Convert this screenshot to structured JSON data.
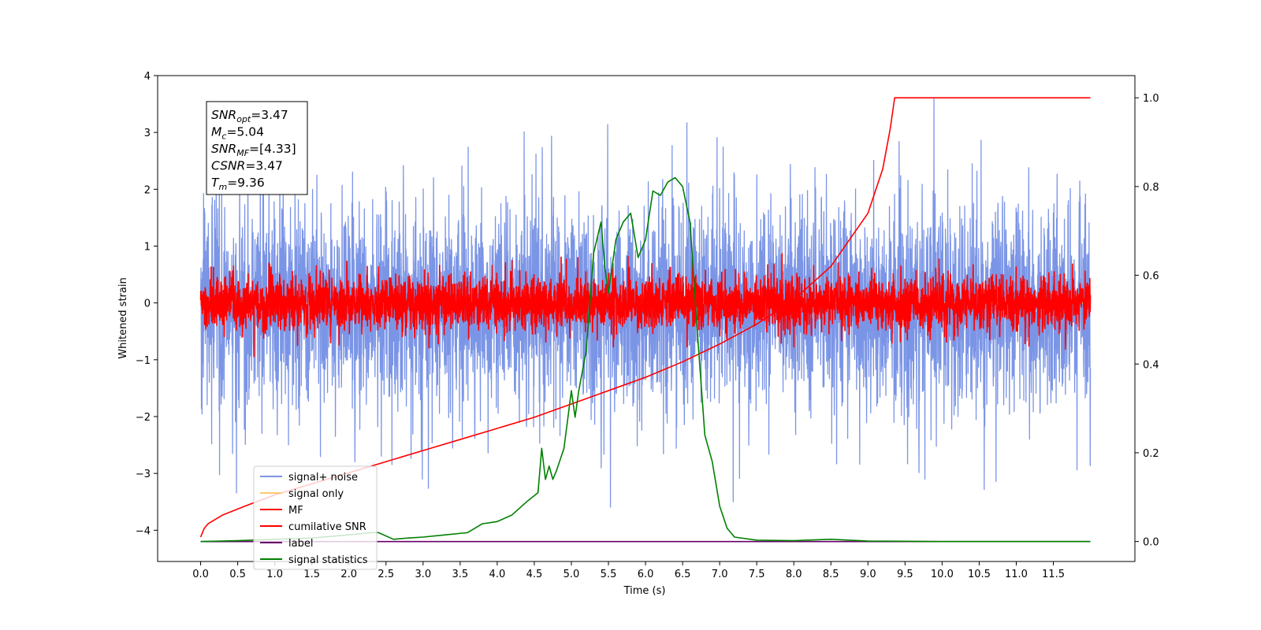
{
  "chart_data": {
    "type": "line",
    "title": "",
    "xlabel": "Time (s)",
    "ylabel": "Whitened strain",
    "xlim": [
      -0.58,
      12.6
    ],
    "ylim": [
      -4.55,
      4.0
    ],
    "y2lim": [
      -0.045,
      1.05
    ],
    "x_ticks": [
      0.0,
      0.5,
      1.0,
      1.5,
      2.0,
      2.5,
      3.0,
      3.5,
      4.0,
      4.5,
      5.0,
      5.5,
      6.0,
      6.5,
      7.0,
      7.5,
      8.0,
      8.5,
      9.0,
      9.5,
      10.0,
      10.5,
      11.0,
      11.5
    ],
    "x_tick_labels": [
      "0.0",
      "0.5",
      "1.0",
      "1.5",
      "2.0",
      "2.5",
      "3.0",
      "3.5",
      "4.0",
      "4.5",
      "5.0",
      "5.5",
      "6.0",
      "6.5",
      "7.0",
      "7.5",
      "8.0",
      "8.5",
      "9.0",
      "9.5",
      "10.0",
      "10.5",
      "11.0",
      "11.5"
    ],
    "y_ticks": [
      -4,
      -3,
      -2,
      -1,
      0,
      1,
      2,
      3,
      4
    ],
    "y_tick_labels": [
      "−4",
      "−3",
      "−2",
      "−1",
      "0",
      "1",
      "2",
      "3",
      "4"
    ],
    "y2_ticks": [
      0.0,
      0.2,
      0.4,
      0.6,
      0.8,
      1.0
    ],
    "y2_tick_labels": [
      "0.0",
      "0.2",
      "0.4",
      "0.6",
      "0.8",
      "1.0"
    ],
    "grid": false,
    "legend_position": "lower-left",
    "annotation": {
      "lines": [
        {
          "sym": "SNR",
          "sub": "opt",
          "val": "=3.47"
        },
        {
          "sym": "M",
          "sub": "c",
          "val": "=5.04"
        },
        {
          "sym": "SNR",
          "sub": "MF",
          "val": "=[4.33]"
        },
        {
          "sym": "CSNR",
          "sub": "",
          "val": "=3.47"
        },
        {
          "sym": "T",
          "sub": "m",
          "val": "=9.36"
        }
      ]
    },
    "series": [
      {
        "name": "signal+ noise",
        "color": "#7b95e6",
        "axis": "left",
        "style": "noise",
        "x_range": [
          0,
          12
        ],
        "mean": -0.05,
        "std": 0.85
      },
      {
        "name": "signal only",
        "color": "#ffc870",
        "axis": "left",
        "style": "flat",
        "x_range": [
          0,
          12
        ]
      },
      {
        "name": "MF",
        "color": "#ff0000",
        "axis": "left",
        "style": "noise",
        "x_range": [
          0,
          12
        ],
        "mean": 0.0,
        "std": 0.22
      },
      {
        "name": "cumilative SNR",
        "color": "#ff0000",
        "axis": "right",
        "x": [
          0.0,
          0.05,
          0.1,
          0.3,
          0.6,
          1.0,
          1.5,
          2.0,
          2.5,
          3.0,
          3.5,
          4.0,
          4.5,
          5.0,
          5.5,
          6.0,
          6.5,
          7.0,
          7.5,
          8.0,
          8.5,
          9.0,
          9.2,
          9.3,
          9.36,
          10.0,
          11.0,
          12.0
        ],
        "y": [
          0.01,
          0.03,
          0.04,
          0.06,
          0.08,
          0.105,
          0.13,
          0.155,
          0.18,
          0.205,
          0.23,
          0.255,
          0.28,
          0.31,
          0.34,
          0.37,
          0.405,
          0.445,
          0.49,
          0.545,
          0.62,
          0.74,
          0.84,
          0.93,
          1.0,
          1.0,
          1.0,
          1.0
        ]
      },
      {
        "name": "label",
        "color": "#6a006a",
        "axis": "right",
        "x": [
          0.0,
          12.0
        ],
        "y": [
          0.0,
          0.0
        ]
      },
      {
        "name": "signal statistics",
        "color": "#008000",
        "axis": "right",
        "x": [
          0.0,
          0.5,
          1.0,
          1.5,
          2.0,
          2.3,
          2.4,
          2.6,
          2.8,
          3.0,
          3.3,
          3.6,
          3.8,
          4.0,
          4.2,
          4.4,
          4.55,
          4.6,
          4.65,
          4.7,
          4.75,
          4.8,
          4.9,
          5.0,
          5.05,
          5.1,
          5.2,
          5.3,
          5.4,
          5.45,
          5.5,
          5.6,
          5.7,
          5.8,
          5.9,
          6.0,
          6.1,
          6.2,
          6.3,
          6.4,
          6.5,
          6.6,
          6.7,
          6.8,
          6.9,
          7.0,
          7.1,
          7.2,
          7.5,
          8.0,
          8.5,
          9.0,
          10.0,
          11.0,
          12.0
        ],
        "y": [
          0.0,
          0.002,
          0.005,
          0.008,
          0.015,
          0.02,
          0.02,
          0.005,
          0.008,
          0.01,
          0.015,
          0.02,
          0.04,
          0.045,
          0.06,
          0.09,
          0.11,
          0.21,
          0.14,
          0.17,
          0.14,
          0.16,
          0.21,
          0.34,
          0.28,
          0.34,
          0.43,
          0.65,
          0.72,
          0.62,
          0.56,
          0.68,
          0.72,
          0.74,
          0.64,
          0.68,
          0.79,
          0.78,
          0.81,
          0.82,
          0.8,
          0.72,
          0.47,
          0.24,
          0.18,
          0.08,
          0.03,
          0.01,
          0.003,
          0.002,
          0.005,
          0.001,
          0.0,
          0.0,
          0.0
        ]
      }
    ]
  }
}
